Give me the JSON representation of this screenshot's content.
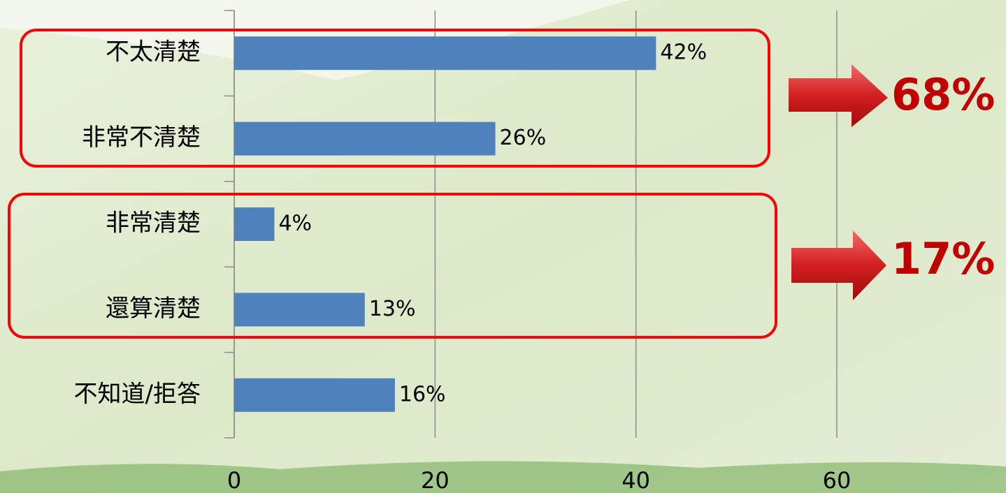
{
  "chart_data": {
    "type": "bar",
    "orientation": "horizontal",
    "categories": [
      "不太清楚",
      "非常不清楚",
      "非常清楚",
      "還算清楚",
      "不知道/拒答"
    ],
    "values": [
      42,
      26,
      4,
      13,
      16
    ],
    "value_labels": [
      "42%",
      "26%",
      "4%",
      "13%",
      "16%"
    ],
    "color": "#4f81bd",
    "xlim": [
      0,
      60
    ],
    "xticks": [
      0,
      20,
      40,
      60
    ],
    "grid": true,
    "annotations": [
      "68%",
      "17%"
    ]
  }
}
